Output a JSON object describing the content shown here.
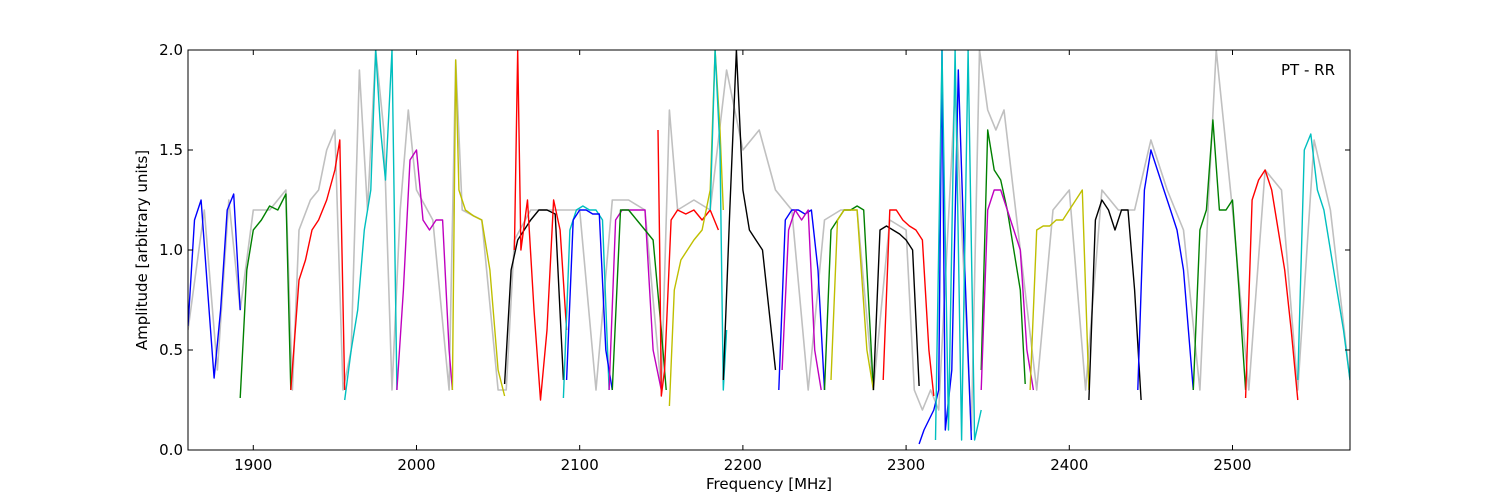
{
  "chart_data": {
    "type": "line",
    "annotation": "PT - RR",
    "xlabel": "Frequency [MHz]",
    "ylabel": "Amplitude [arbitrary units]",
    "xlim": [
      1860,
      2572
    ],
    "ylim": [
      0.0,
      2.0
    ],
    "grid": false,
    "x_ticks": [
      1900,
      2000,
      2100,
      2200,
      2300,
      2400,
      2500
    ],
    "y_ticks": [
      0.0,
      0.5,
      1.0,
      1.5,
      2.0
    ],
    "x_tick_labels": [
      "1900",
      "2000",
      "2100",
      "2200",
      "2300",
      "2400",
      "2500"
    ],
    "y_tick_labels": [
      "0.0",
      "0.5",
      "1.0",
      "1.5",
      "2.0"
    ],
    "background_series": {
      "color": "#c0c0c0",
      "x": [
        1860,
        1870,
        1878,
        1885,
        1892,
        1900,
        1910,
        1920,
        1924,
        1928,
        1935,
        1940,
        1945,
        1950,
        1955,
        1960,
        1965,
        1970,
        1975,
        1980,
        1985,
        1990,
        1995,
        2000,
        2010,
        2020,
        2024,
        2028,
        2040,
        2050,
        2055,
        2060,
        2070,
        2080,
        2090,
        2100,
        2110,
        2120,
        2130,
        2140,
        2150,
        2155,
        2160,
        2170,
        2180,
        2190,
        2200,
        2210,
        2220,
        2230,
        2240,
        2250,
        2260,
        2270,
        2280,
        2290,
        2300,
        2305,
        2310,
        2315,
        2320,
        2330,
        2340,
        2345,
        2350,
        2355,
        2360,
        2370,
        2380,
        2390,
        2400,
        2410,
        2420,
        2430,
        2440,
        2450,
        2460,
        2470,
        2480,
        2485,
        2490,
        2500,
        2510,
        2520,
        2530,
        2540,
        2550,
        2560,
        2572
      ],
      "y": [
        0.6,
        1.2,
        0.4,
        1.25,
        0.7,
        1.2,
        1.2,
        1.3,
        0.3,
        1.1,
        1.25,
        1.3,
        1.5,
        1.6,
        0.3,
        0.5,
        1.9,
        1.2,
        2.0,
        1.6,
        0.3,
        1.2,
        1.7,
        1.3,
        1.15,
        0.3,
        1.95,
        1.2,
        1.15,
        0.3,
        0.3,
        1.05,
        1.2,
        1.2,
        1.2,
        1.2,
        0.3,
        1.25,
        1.25,
        1.2,
        0.3,
        1.7,
        1.2,
        1.25,
        1.2,
        1.9,
        1.5,
        1.6,
        1.3,
        1.2,
        0.3,
        1.15,
        1.2,
        1.2,
        0.3,
        1.15,
        1.1,
        0.3,
        0.2,
        0.3,
        0.2,
        1.8,
        0.1,
        2.0,
        1.7,
        1.6,
        1.7,
        1.0,
        0.3,
        1.2,
        1.3,
        0.3,
        1.3,
        1.2,
        1.2,
        1.55,
        1.3,
        1.1,
        0.3,
        1.2,
        2.0,
        1.2,
        0.3,
        1.4,
        1.3,
        0.3,
        1.55,
        1.2,
        0.35
      ]
    },
    "series": [
      {
        "color": "#0000ff",
        "x": [
          1860,
          1864,
          1868,
          1872,
          1876,
          1880,
          1884,
          1888,
          1892
        ],
        "y": [
          0.62,
          1.15,
          1.25,
          0.8,
          0.36,
          0.7,
          1.2,
          1.28,
          0.7
        ]
      },
      {
        "color": "#008000",
        "x": [
          1892,
          1896,
          1900,
          1905,
          1910,
          1915,
          1920,
          1923
        ],
        "y": [
          0.26,
          0.9,
          1.1,
          1.15,
          1.22,
          1.2,
          1.28,
          0.3
        ]
      },
      {
        "color": "#ff0000",
        "x": [
          1923,
          1928,
          1932,
          1936,
          1940,
          1945,
          1950,
          1953,
          1956
        ],
        "y": [
          0.3,
          0.85,
          0.95,
          1.1,
          1.15,
          1.25,
          1.4,
          1.55,
          0.3
        ]
      },
      {
        "color": "#00bfbf",
        "x": [
          1956,
          1960,
          1964,
          1968,
          1972,
          1975,
          1978,
          1981,
          1985,
          1988
        ],
        "y": [
          0.25,
          0.5,
          0.7,
          1.1,
          1.3,
          2.0,
          1.6,
          1.35,
          2.0,
          0.3
        ]
      },
      {
        "color": "#bf00bf",
        "x": [
          1988,
          1992,
          1996,
          2000,
          2004,
          2008,
          2012,
          2016,
          2020,
          2022
        ],
        "y": [
          0.3,
          0.8,
          1.45,
          1.5,
          1.15,
          1.1,
          1.15,
          1.15,
          0.5,
          0.3
        ]
      },
      {
        "color": "#bfbf00",
        "x": [
          2022,
          2024,
          2026,
          2030,
          2035,
          2040,
          2045,
          2050,
          2054
        ],
        "y": [
          0.3,
          1.95,
          1.3,
          1.2,
          1.17,
          1.15,
          0.9,
          0.4,
          0.27
        ]
      },
      {
        "color": "#000000",
        "x": [
          2054,
          2058,
          2062,
          2066,
          2070,
          2075,
          2080,
          2085,
          2090
        ],
        "y": [
          0.33,
          0.9,
          1.05,
          1.1,
          1.15,
          1.2,
          1.2,
          1.18,
          0.35
        ]
      },
      {
        "color": "#ff0000",
        "x": [
          2060,
          2062,
          2064,
          2068,
          2072,
          2076,
          2080,
          2084,
          2088,
          2092
        ],
        "y": [
          1.0,
          2.0,
          1.0,
          1.25,
          0.7,
          0.25,
          0.6,
          1.25,
          1.1,
          0.6
        ]
      },
      {
        "color": "#00bfbf",
        "x": [
          2090,
          2094,
          2098,
          2102,
          2106,
          2110,
          2114,
          2118
        ],
        "y": [
          0.26,
          1.1,
          1.2,
          1.22,
          1.2,
          1.2,
          1.15,
          0.3
        ]
      },
      {
        "color": "#0000ff",
        "x": [
          2092,
          2096,
          2100,
          2104,
          2108,
          2112,
          2116,
          2120
        ],
        "y": [
          0.35,
          1.15,
          1.2,
          1.2,
          1.18,
          1.18,
          0.5,
          0.3
        ]
      },
      {
        "color": "#bf00bf",
        "x": [
          2118,
          2122,
          2126,
          2130,
          2135,
          2140,
          2145,
          2150
        ],
        "y": [
          0.3,
          1.15,
          1.2,
          1.2,
          1.2,
          1.2,
          0.5,
          0.3
        ]
      },
      {
        "color": "#008000",
        "x": [
          2120,
          2125,
          2130,
          2135,
          2140,
          2145,
          2150,
          2153
        ],
        "y": [
          0.3,
          1.2,
          1.2,
          1.15,
          1.1,
          1.05,
          0.6,
          0.3
        ]
      },
      {
        "color": "#ff0000",
        "x": [
          2148,
          2149,
          2150,
          2152,
          2156,
          2160,
          2165,
          2170,
          2175,
          2180,
          2185
        ],
        "y": [
          1.6,
          1.0,
          0.27,
          0.4,
          1.15,
          1.2,
          1.18,
          1.2,
          1.15,
          1.2,
          1.1
        ]
      },
      {
        "color": "#bfbf00",
        "x": [
          2155,
          2158,
          2162,
          2166,
          2170,
          2175,
          2180,
          2183,
          2186,
          2188
        ],
        "y": [
          0.22,
          0.8,
          0.95,
          1.0,
          1.05,
          1.1,
          1.3,
          2.0,
          1.6,
          1.2
        ]
      },
      {
        "color": "#00bfbf",
        "x": [
          2180,
          2183,
          2186,
          2188,
          2190
        ],
        "y": [
          1.2,
          2.0,
          1.5,
          0.3,
          0.6
        ]
      },
      {
        "color": "#000000",
        "x": [
          2188,
          2192,
          2196,
          2200,
          2204,
          2208,
          2212,
          2216,
          2220
        ],
        "y": [
          0.35,
          1.2,
          2.0,
          1.3,
          1.1,
          1.05,
          1.0,
          0.7,
          0.4
        ]
      },
      {
        "color": "#0000ff",
        "x": [
          2222,
          2226,
          2230,
          2234,
          2238,
          2242,
          2246,
          2250
        ],
        "y": [
          0.3,
          1.15,
          1.2,
          1.2,
          1.18,
          1.2,
          0.9,
          0.3
        ]
      },
      {
        "color": "#bf00bf",
        "x": [
          2224,
          2228,
          2232,
          2236,
          2240,
          2244,
          2248
        ],
        "y": [
          0.4,
          1.1,
          1.2,
          1.15,
          1.2,
          0.5,
          0.3
        ]
      },
      {
        "color": "#008000",
        "x": [
          2250,
          2254,
          2258,
          2262,
          2266,
          2270,
          2274,
          2280
        ],
        "y": [
          0.3,
          1.1,
          1.15,
          1.2,
          1.2,
          1.22,
          1.2,
          0.3
        ]
      },
      {
        "color": "#bfbf00",
        "x": [
          2254,
          2258,
          2262,
          2266,
          2270,
          2276,
          2280
        ],
        "y": [
          0.35,
          1.15,
          1.2,
          1.2,
          1.2,
          0.5,
          0.3
        ]
      },
      {
        "color": "#000000",
        "x": [
          2280,
          2284,
          2288,
          2292,
          2296,
          2300,
          2304,
          2308
        ],
        "y": [
          0.3,
          1.1,
          1.12,
          1.1,
          1.08,
          1.05,
          1.0,
          0.32
        ]
      },
      {
        "color": "#ff0000",
        "x": [
          2286,
          2290,
          2294,
          2298,
          2302,
          2306,
          2310,
          2314,
          2317
        ],
        "y": [
          0.35,
          1.2,
          1.2,
          1.15,
          1.12,
          1.1,
          1.05,
          0.5,
          0.27
        ]
      },
      {
        "color": "#0000ff",
        "x": [
          2308,
          2311,
          2314,
          2317,
          2320,
          2322,
          2324,
          2328,
          2332,
          2336,
          2340
        ],
        "y": [
          0.03,
          0.1,
          0.15,
          0.2,
          0.3,
          2.0,
          0.1,
          0.4,
          1.9,
          0.9,
          0.05
        ]
      },
      {
        "color": "#00bfbf",
        "x": [
          2318,
          2322,
          2326,
          2330,
          2334,
          2338,
          2342,
          2346
        ],
        "y": [
          0.05,
          2.0,
          0.1,
          2.0,
          0.05,
          2.0,
          0.05,
          0.2
        ]
      },
      {
        "color": "#008000",
        "x": [
          2346,
          2350,
          2354,
          2358,
          2362,
          2366,
          2370,
          2373
        ],
        "y": [
          0.4,
          1.6,
          1.4,
          1.35,
          1.2,
          1.0,
          0.8,
          0.33
        ]
      },
      {
        "color": "#bf00bf",
        "x": [
          2346,
          2350,
          2354,
          2358,
          2362,
          2366,
          2370,
          2374,
          2378
        ],
        "y": [
          0.3,
          1.2,
          1.3,
          1.3,
          1.2,
          1.1,
          1.0,
          0.5,
          0.3
        ]
      },
      {
        "color": "#bfbf00",
        "x": [
          2376,
          2380,
          2384,
          2388,
          2392,
          2396,
          2400,
          2404,
          2408,
          2412
        ],
        "y": [
          0.3,
          1.1,
          1.12,
          1.12,
          1.15,
          1.15,
          1.2,
          1.25,
          1.3,
          0.3
        ]
      },
      {
        "color": "#000000",
        "x": [
          2412,
          2416,
          2420,
          2424,
          2428,
          2432,
          2436,
          2440,
          2444
        ],
        "y": [
          0.25,
          1.15,
          1.25,
          1.2,
          1.1,
          1.2,
          1.2,
          0.8,
          0.25
        ]
      },
      {
        "color": "#0000ff",
        "x": [
          2442,
          2446,
          2450,
          2454,
          2458,
          2462,
          2466,
          2470,
          2476
        ],
        "y": [
          0.3,
          1.3,
          1.5,
          1.4,
          1.3,
          1.2,
          1.1,
          0.9,
          0.3
        ]
      },
      {
        "color": "#008000",
        "x": [
          2476,
          2480,
          2484,
          2488,
          2492,
          2496,
          2500,
          2504,
          2508
        ],
        "y": [
          0.3,
          1.1,
          1.2,
          1.65,
          1.2,
          1.2,
          1.25,
          0.8,
          0.3
        ]
      },
      {
        "color": "#ff0000",
        "x": [
          2508,
          2512,
          2516,
          2520,
          2524,
          2528,
          2532,
          2536,
          2540
        ],
        "y": [
          0.26,
          1.25,
          1.35,
          1.4,
          1.3,
          1.1,
          0.9,
          0.6,
          0.25
        ]
      },
      {
        "color": "#00bfbf",
        "x": [
          2540,
          2544,
          2548,
          2552,
          2556,
          2560,
          2564,
          2568,
          2572
        ],
        "y": [
          0.35,
          1.5,
          1.58,
          1.3,
          1.2,
          1.0,
          0.8,
          0.6,
          0.35
        ]
      }
    ]
  }
}
